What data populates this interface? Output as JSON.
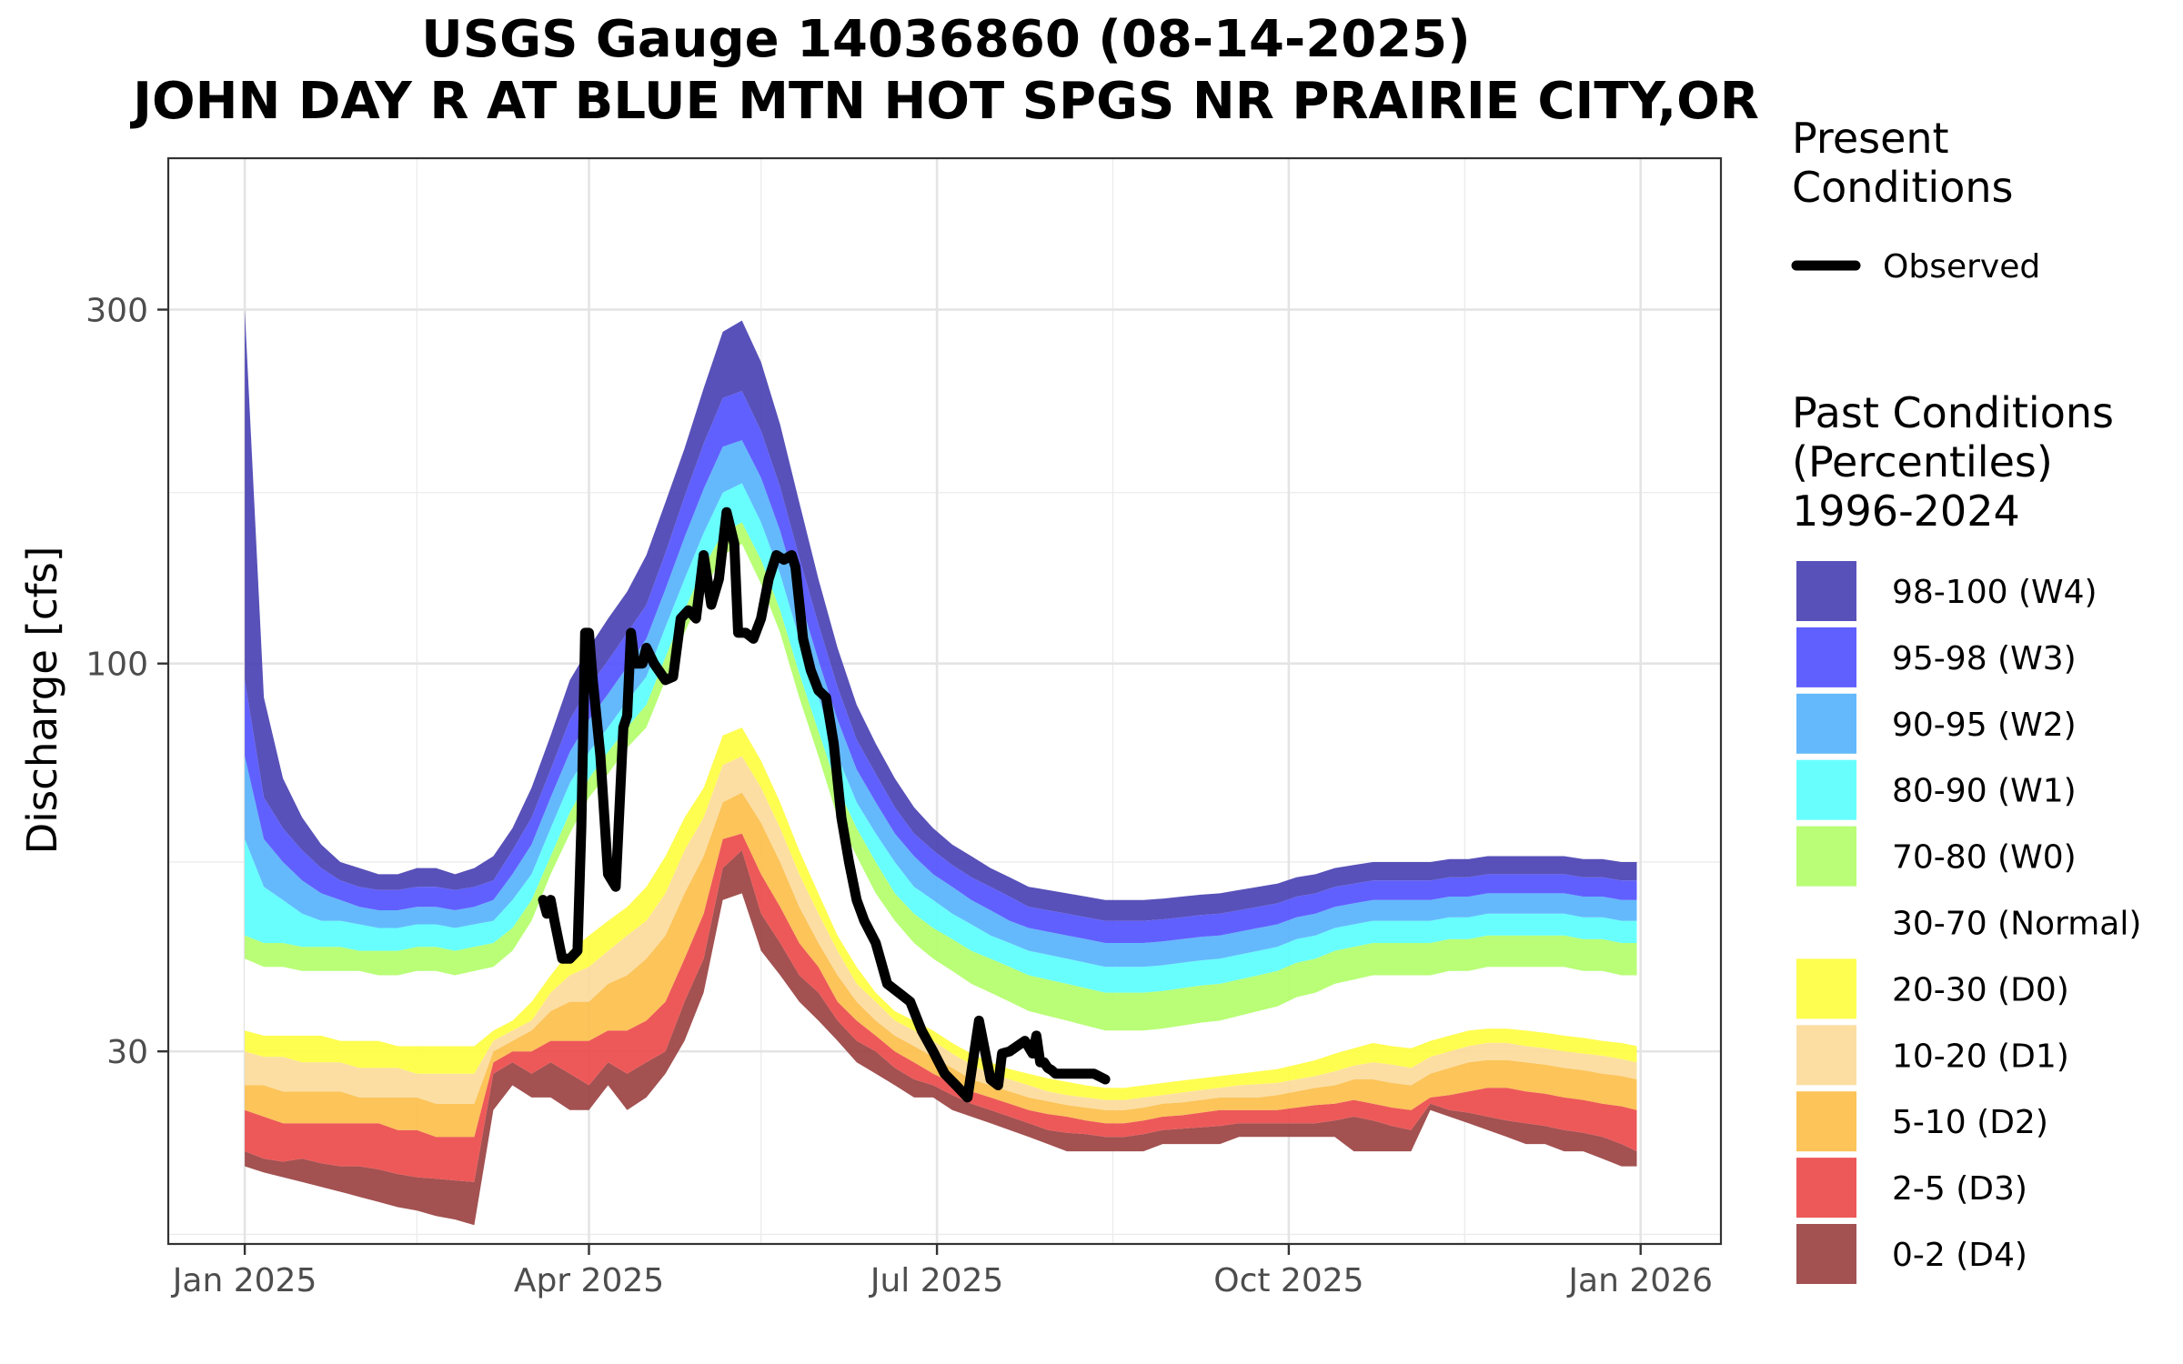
{
  "chart_data": {
    "type": "area",
    "title": "USGS Gauge 14036860 (08-14-2025)",
    "subtitle": "JOHN DAY R AT BLUE MTN HOT SPGS NR PRAIRIE CITY,OR",
    "xlabel": "",
    "ylabel": "Discharge [cfs]",
    "y_scale": "log",
    "ylim": [
      16.5,
      480
    ],
    "xlim": [
      "2024-12-12",
      "2026-01-22"
    ],
    "y_ticks": [
      30,
      100,
      300
    ],
    "y_minor_ticks": [
      17,
      54,
      170
    ],
    "x_ticks": [
      "Jan 2025",
      "Apr 2025",
      "Jul 2025",
      "Oct 2025",
      "Jan 2026"
    ],
    "x_tick_dates": [
      "2025-01-01",
      "2025-04-01",
      "2025-07-01",
      "2025-10-01",
      "2026-01-01"
    ],
    "x_minor_dates": [
      "2025-02-15",
      "2025-05-16",
      "2025-08-16",
      "2025-11-16"
    ],
    "grid": true,
    "percentile_dates": [
      "2025-01-01",
      "2025-01-06",
      "2025-01-11",
      "2025-01-16",
      "2025-01-21",
      "2025-01-26",
      "2025-01-31",
      "2025-02-05",
      "2025-02-10",
      "2025-02-15",
      "2025-02-20",
      "2025-02-25",
      "2025-03-02",
      "2025-03-07",
      "2025-03-12",
      "2025-03-17",
      "2025-03-22",
      "2025-03-27",
      "2025-04-01",
      "2025-04-06",
      "2025-04-11",
      "2025-04-16",
      "2025-04-21",
      "2025-04-26",
      "2025-05-01",
      "2025-05-06",
      "2025-05-11",
      "2025-05-16",
      "2025-05-21",
      "2025-05-26",
      "2025-05-31",
      "2025-06-05",
      "2025-06-10",
      "2025-06-15",
      "2025-06-20",
      "2025-06-25",
      "2025-06-30",
      "2025-07-05",
      "2025-07-10",
      "2025-07-15",
      "2025-07-20",
      "2025-07-25",
      "2025-07-30",
      "2025-08-04",
      "2025-08-09",
      "2025-08-14",
      "2025-08-19",
      "2025-08-24",
      "2025-08-29",
      "2025-09-03",
      "2025-09-08",
      "2025-09-13",
      "2025-09-18",
      "2025-09-23",
      "2025-09-28",
      "2025-10-03",
      "2025-10-08",
      "2025-10-13",
      "2025-10-18",
      "2025-10-23",
      "2025-10-28",
      "2025-11-02",
      "2025-11-07",
      "2025-11-12",
      "2025-11-17",
      "2025-11-22",
      "2025-11-27",
      "2025-12-02",
      "2025-12-07",
      "2025-12-12",
      "2025-12-17",
      "2025-12-22",
      "2025-12-27",
      "2025-12-31"
    ],
    "percentiles": {
      "p0": [
        21,
        20.6,
        20.3,
        20,
        19.7,
        19.4,
        19.1,
        18.8,
        18.5,
        18.3,
        18,
        17.8,
        17.5,
        25,
        27,
        26,
        26,
        25,
        25,
        27,
        25,
        26,
        28,
        31,
        36,
        48,
        49,
        41,
        38,
        35,
        33,
        31,
        29,
        28,
        27,
        26,
        26,
        25,
        24.5,
        24,
        23.5,
        23,
        22.5,
        22,
        22,
        22,
        22,
        22,
        22.5,
        22.5,
        22.5,
        22.5,
        23,
        23,
        23,
        23,
        23,
        23,
        22,
        22,
        22,
        22,
        25,
        24.5,
        24,
        23.5,
        23,
        22.5,
        22.5,
        22,
        22,
        21.5,
        21,
        21
      ],
      "p2": [
        22,
        21.5,
        21.3,
        21.5,
        21.2,
        21,
        21,
        20.8,
        20.5,
        20.3,
        20.2,
        20.1,
        20,
        28,
        29,
        28,
        29,
        28,
        27,
        29,
        28,
        29,
        30,
        35,
        40,
        53,
        56,
        46,
        42,
        38,
        36,
        33,
        31,
        30,
        28.5,
        27.5,
        27,
        26.2,
        25.5,
        25,
        24.5,
        24,
        23.5,
        23.3,
        23.2,
        23,
        23,
        23.2,
        23.5,
        23.6,
        23.7,
        23.8,
        24,
        24,
        24,
        24,
        24,
        24.2,
        24.5,
        24.2,
        23.8,
        23.5,
        25.5,
        25,
        24.8,
        24.5,
        24.2,
        24,
        23.8,
        23.5,
        23.3,
        23,
        22.5,
        22
      ],
      "p5": [
        25,
        24.5,
        24,
        24,
        24,
        24,
        24,
        24,
        23.5,
        23.5,
        23,
        23,
        23,
        29,
        30,
        30,
        31,
        31,
        31,
        32,
        32,
        33,
        35,
        40,
        46,
        58,
        59,
        52,
        47,
        42,
        39,
        35,
        33,
        31.5,
        30,
        29,
        28,
        27.2,
        26.5,
        26,
        25.5,
        25,
        24.7,
        24.5,
        24.2,
        24,
        24,
        24.2,
        24.5,
        24.6,
        24.8,
        25,
        25,
        25,
        25,
        25.2,
        25.4,
        25.5,
        25.8,
        25.5,
        25.2,
        25,
        26,
        26.2,
        26.5,
        26.8,
        26.8,
        26.5,
        26.3,
        26,
        25.8,
        25.5,
        25.3,
        25
      ],
      "p10": [
        27,
        27,
        26.5,
        26.5,
        26.5,
        26.5,
        26,
        26,
        26,
        26,
        25.5,
        25.5,
        25.5,
        30,
        31,
        32,
        34,
        35,
        35,
        37,
        38,
        40,
        43,
        49,
        55,
        65,
        67,
        61,
        54,
        47,
        42,
        38,
        35,
        33,
        31.5,
        30.5,
        29.5,
        28.5,
        27.5,
        27,
        26.5,
        26,
        25.7,
        25.4,
        25.2,
        25,
        25,
        25.2,
        25.5,
        25.6,
        25.8,
        26,
        26,
        26,
        26.2,
        26.5,
        26.8,
        27,
        27.5,
        27.5,
        27.2,
        27,
        28,
        28.5,
        29,
        29.2,
        29.2,
        29,
        28.8,
        28.5,
        28.3,
        28,
        27.8,
        27.5
      ],
      "p20": [
        30,
        29.5,
        29.5,
        29,
        29,
        29,
        28.5,
        28.5,
        28.5,
        28,
        28,
        28,
        28,
        31,
        32,
        33,
        36,
        38,
        39,
        41,
        43,
        45,
        49,
        56,
        62,
        73,
        75,
        68,
        60,
        52,
        46,
        41,
        37,
        35,
        33,
        32,
        31,
        29.8,
        28.8,
        28,
        27.5,
        27,
        26.5,
        26.2,
        26,
        25.8,
        25.8,
        26,
        26.2,
        26.4,
        26.6,
        26.8,
        27,
        27.1,
        27.2,
        27.5,
        27.8,
        28.2,
        28.7,
        29,
        28.8,
        28.5,
        29.5,
        30,
        30.5,
        30.8,
        30.8,
        30.5,
        30.3,
        30,
        29.8,
        29.6,
        29.3,
        29
      ],
      "p30": [
        32,
        31.5,
        31.5,
        31.5,
        31.5,
        31,
        31,
        31,
        30.5,
        30.5,
        30.5,
        30.5,
        30.5,
        32,
        33,
        35,
        38,
        41,
        43,
        45,
        47,
        50,
        55,
        62,
        68,
        80,
        82,
        74,
        65,
        56,
        49,
        43,
        39,
        36,
        34,
        33,
        32,
        30.8,
        29.8,
        29,
        28.4,
        28,
        27.6,
        27.3,
        27,
        26.8,
        26.8,
        27,
        27.2,
        27.4,
        27.6,
        27.8,
        28,
        28.2,
        28.4,
        28.8,
        29.2,
        29.8,
        30.3,
        30.8,
        30.5,
        30.3,
        31,
        31.5,
        32,
        32.2,
        32.2,
        32,
        31.8,
        31.5,
        31.3,
        31,
        30.8,
        30.5
      ],
      "p70": [
        40,
        39,
        39,
        38.5,
        38.5,
        38.5,
        38.5,
        38,
        38,
        38.5,
        38.5,
        38,
        38.5,
        39,
        41,
        45,
        52,
        59,
        66,
        71,
        77,
        82,
        95,
        110,
        125,
        140,
        145,
        128,
        110,
        90,
        75,
        62,
        55,
        49,
        45,
        42,
        40,
        38.5,
        37,
        36,
        35,
        34,
        33.5,
        33,
        32.5,
        32,
        32,
        32,
        32.2,
        32.5,
        32.8,
        33,
        33.5,
        34,
        34.5,
        35.5,
        36,
        37,
        37.5,
        38,
        38,
        38,
        38,
        38.5,
        38.5,
        39,
        39,
        39,
        39,
        39,
        38.5,
        38.5,
        38,
        38
      ],
      "p80": [
        43,
        42,
        42,
        41.5,
        41.5,
        41.5,
        41,
        41,
        41,
        41.5,
        41.5,
        41,
        41.5,
        42,
        44,
        48,
        55,
        63,
        70,
        76,
        82,
        88,
        102,
        118,
        135,
        150,
        155,
        138,
        118,
        97,
        81,
        68,
        60,
        54,
        49,
        46,
        44,
        42.5,
        41,
        40,
        39,
        38,
        37.5,
        37,
        36.5,
        36,
        36,
        36,
        36.2,
        36.5,
        36.8,
        37,
        37.5,
        38,
        38.5,
        39.5,
        40,
        41,
        41.5,
        42,
        42,
        42,
        42,
        42.5,
        42.5,
        43,
        43,
        43,
        43,
        43,
        42.5,
        42.5,
        42,
        42
      ],
      "p90": [
        58,
        50,
        48,
        46,
        45,
        45,
        44.5,
        44,
        44,
        44.5,
        44.5,
        44,
        44.5,
        45,
        48,
        52,
        60,
        69,
        76,
        82,
        89,
        96,
        112,
        130,
        150,
        170,
        175,
        155,
        132,
        108,
        90,
        75,
        65,
        59,
        54,
        50,
        48,
        46,
        44.5,
        43,
        42,
        41,
        40.5,
        40,
        39.5,
        39,
        39,
        39,
        39.2,
        39.5,
        39.8,
        40,
        40.5,
        41,
        41.5,
        42.5,
        43,
        44,
        44.5,
        45,
        45,
        45,
        45,
        45.5,
        45.5,
        46,
        46,
        46,
        46,
        46,
        45.5,
        45.5,
        45,
        45
      ],
      "p95": [
        75,
        58,
        54,
        51,
        49,
        48,
        47,
        46.5,
        46.5,
        47,
        47,
        46.5,
        47,
        48,
        52,
        57,
        66,
        76,
        84,
        91,
        99,
        108,
        126,
        148,
        172,
        196,
        200,
        178,
        151,
        123,
        101,
        84,
        72,
        65,
        59,
        55,
        52,
        50,
        48,
        46.5,
        45,
        44,
        43.5,
        43,
        42.5,
        42,
        42,
        42,
        42.2,
        42.5,
        42.8,
        43,
        43.5,
        44,
        44.5,
        45.5,
        46,
        47,
        47.5,
        48,
        48,
        48,
        48,
        48.5,
        48.5,
        49,
        49,
        49,
        49,
        49,
        48.5,
        48.5,
        48,
        48
      ],
      "p98": [
        95,
        66,
        60,
        56,
        53,
        51,
        50,
        49.5,
        49.5,
        50,
        50,
        49.5,
        50,
        51,
        56,
        62,
        72,
        84,
        93,
        101,
        110,
        120,
        141,
        168,
        198,
        228,
        233,
        206,
        173,
        139,
        113,
        93,
        79,
        71,
        64,
        59,
        56,
        53.5,
        51.5,
        50,
        48.5,
        47,
        46.5,
        46,
        45.5,
        45,
        45,
        45,
        45.2,
        45.5,
        45.8,
        46,
        46.5,
        47,
        47.5,
        48.5,
        49,
        50,
        50.5,
        51,
        51,
        51,
        51,
        51.5,
        51.5,
        52,
        52,
        52,
        52,
        52,
        51.5,
        51.5,
        51,
        51
      ],
      "p100": [
        300,
        90,
        70,
        62,
        57,
        54,
        53,
        52,
        52,
        53,
        53,
        52,
        53,
        55,
        60,
        68,
        80,
        95,
        105,
        115,
        125,
        140,
        165,
        195,
        235,
        280,
        290,
        255,
        210,
        165,
        130,
        105,
        88,
        78,
        70,
        64,
        60,
        57,
        55,
        53,
        51.5,
        50,
        49.5,
        49,
        48.5,
        48,
        48,
        48,
        48.2,
        48.5,
        48.8,
        49,
        49.5,
        50,
        50.5,
        51.5,
        52,
        53,
        53.5,
        54,
        54,
        54,
        54,
        54.5,
        54.5,
        55,
        55,
        55,
        55,
        55,
        54.5,
        54.5,
        54,
        54
      ]
    },
    "series": [
      {
        "name": "Observed",
        "color": "#000000",
        "x": [
          "2025-03-20",
          "2025-03-21",
          "2025-03-22",
          "2025-03-23",
          "2025-03-25",
          "2025-03-27",
          "2025-03-29",
          "2025-03-30",
          "2025-03-31",
          "2025-04-01",
          "2025-04-02",
          "2025-04-04",
          "2025-04-06",
          "2025-04-08",
          "2025-04-10",
          "2025-04-11",
          "2025-04-12",
          "2025-04-13",
          "2025-04-15",
          "2025-04-16",
          "2025-04-18",
          "2025-04-21",
          "2025-04-23",
          "2025-04-25",
          "2025-04-27",
          "2025-04-29",
          "2025-05-01",
          "2025-05-03",
          "2025-05-05",
          "2025-05-07",
          "2025-05-09",
          "2025-05-10",
          "2025-05-12",
          "2025-05-14",
          "2025-05-16",
          "2025-05-18",
          "2025-05-20",
          "2025-05-22",
          "2025-05-24",
          "2025-05-25",
          "2025-05-27",
          "2025-05-29",
          "2025-05-31",
          "2025-06-02",
          "2025-06-04",
          "2025-06-06",
          "2025-06-08",
          "2025-06-10",
          "2025-06-12",
          "2025-06-15",
          "2025-06-18",
          "2025-06-21",
          "2025-06-24",
          "2025-06-27",
          "2025-06-30",
          "2025-07-03",
          "2025-07-06",
          "2025-07-09",
          "2025-07-12",
          "2025-07-15",
          "2025-07-17",
          "2025-07-18",
          "2025-07-20",
          "2025-07-22",
          "2025-07-24",
          "2025-07-26",
          "2025-07-27",
          "2025-07-28",
          "2025-07-29",
          "2025-07-30",
          "2025-07-31",
          "2025-08-01",
          "2025-08-03",
          "2025-08-06",
          "2025-08-09",
          "2025-08-11",
          "2025-08-14"
        ],
        "y": [
          48,
          46,
          48,
          45,
          40,
          40,
          41,
          60,
          110,
          110,
          95,
          75,
          52,
          50,
          82,
          85,
          110,
          100,
          100,
          105,
          100,
          95,
          96,
          115,
          118,
          115,
          140,
          120,
          130,
          160,
          145,
          110,
          110,
          108,
          115,
          130,
          140,
          138,
          140,
          135,
          108,
          98,
          92,
          90,
          78,
          62,
          54,
          48,
          45,
          42,
          37,
          36,
          35,
          32,
          30,
          28,
          27,
          26,
          33,
          27.5,
          27,
          29.8,
          30,
          30.5,
          31,
          29.8,
          31.5,
          29,
          29,
          28.5,
          28.3,
          28,
          28,
          28,
          28,
          28,
          27.5
        ]
      }
    ],
    "legend": {
      "present_title": "Present\nConditions",
      "observed_label": "Observed",
      "past_title": "Past Conditions\n(Percentiles)\n1996-2024",
      "entries": [
        {
          "label": "98-100 (W4)",
          "color": "#4b44b4"
        },
        {
          "label": "95-98 (W3)",
          "color": "#5454ff"
        },
        {
          "label": "90-95 (W2)",
          "color": "#58b4fc"
        },
        {
          "label": "80-90 (W1)",
          "color": "#5cfefe"
        },
        {
          "label": "70-80 (W0)",
          "color": "#b4fe6c"
        },
        {
          "label": "30-70 (Normal)",
          "color": "#ffffff"
        },
        {
          "label": "20-30 (D0)",
          "color": "#fefe44"
        },
        {
          "label": "10-20 (D1)",
          "color": "#fcdc9c"
        },
        {
          "label": "5-10 (D2)",
          "color": "#fcc04c"
        },
        {
          "label": "2-5 (D3)",
          "color": "#ec4c4c"
        },
        {
          "label": "0-2 (D4)",
          "color": "#9c4444"
        }
      ],
      "placement": "right"
    }
  }
}
